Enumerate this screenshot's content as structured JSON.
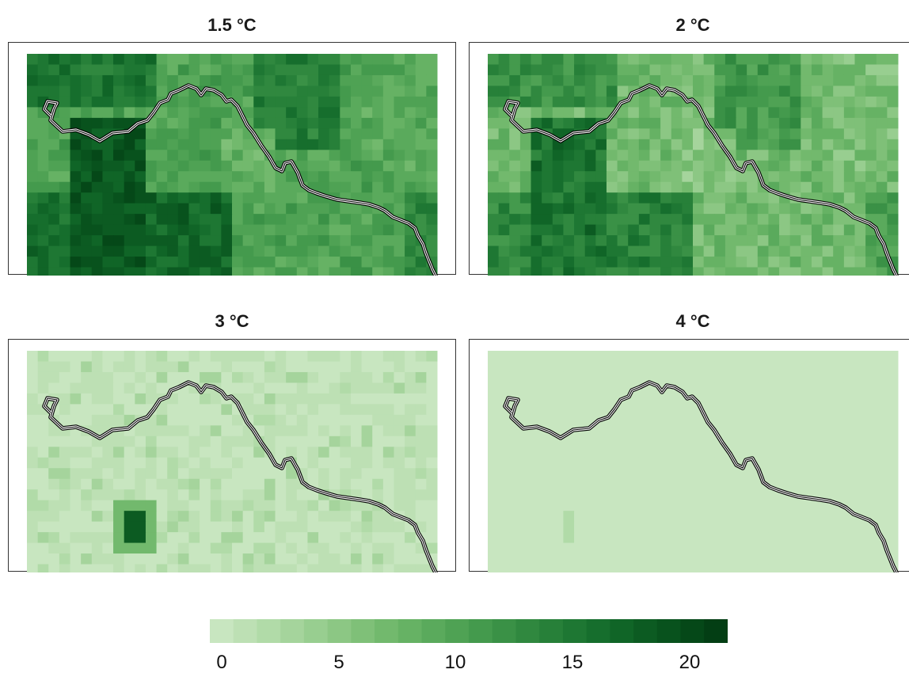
{
  "panels": [
    {
      "title": "1.5 °C",
      "pattern": "high"
    },
    {
      "title": "2 °C",
      "pattern": "medium"
    },
    {
      "title": "3 °C",
      "pattern": "low"
    },
    {
      "title": "4 °C",
      "pattern": "minimal"
    }
  ],
  "legend": {
    "range": [
      0,
      22
    ],
    "ticks": [
      "0",
      "5",
      "10",
      "15",
      "20"
    ],
    "colors": [
      "#c8e6c0",
      "#bde0b4",
      "#b1dba8",
      "#a5d49c",
      "#98ce90",
      "#8cc784",
      "#7fc078",
      "#72b96d",
      "#66b264",
      "#5aaa5c",
      "#4fa254",
      "#449a4d",
      "#3a9146",
      "#30883f",
      "#278039",
      "#1e7733",
      "#166e2d",
      "#106527",
      "#0c5b22",
      "#08521d",
      "#054818",
      "#033e14"
    ]
  }
}
